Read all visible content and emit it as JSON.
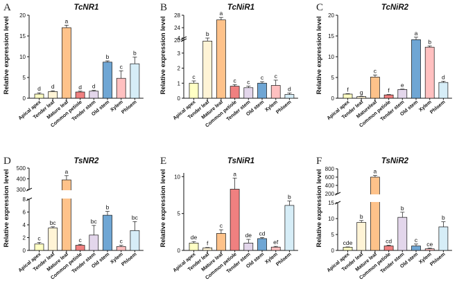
{
  "chart_data": [
    {
      "type": "bar",
      "panel": "A",
      "title": "TcNR1",
      "ylabel": "Relative expression level",
      "categories": [
        "Apical apex",
        "Tender leaf",
        "Mature leaf",
        "Common petiole",
        "Tender stem",
        "Old stem",
        "Xylem",
        "Phloem"
      ],
      "values": [
        1.0,
        1.6,
        17.0,
        1.5,
        1.7,
        8.7,
        4.8,
        8.3
      ],
      "errors": [
        0.3,
        0.2,
        0.6,
        0.2,
        0.2,
        0.3,
        1.8,
        1.6
      ],
      "letters": [
        "d",
        "d",
        "a",
        "d",
        "d",
        "b",
        "c",
        "b"
      ],
      "colors": [
        "#ffffc4",
        "#fff4d6",
        "#fec28a",
        "#f08080",
        "#e3d6eb",
        "#6fa6d4",
        "#ffc0c0",
        "#d6edf7"
      ],
      "yticks": [
        0,
        5,
        10,
        15,
        20
      ],
      "segments": [
        {
          "from": 0,
          "to": 20,
          "ticks": [
            0,
            5,
            10,
            15,
            20
          ]
        }
      ]
    },
    {
      "type": "bar",
      "panel": "B",
      "title": "TcNiR1",
      "ylabel": "Relative expression level",
      "categories": [
        "Apical apex",
        "Tender leaf",
        "Mature leaf",
        "Common petiole",
        "Tender stem",
        "Old stem",
        "Xylem",
        "Phloem"
      ],
      "values": [
        1.0,
        3.8,
        26.5,
        0.8,
        0.7,
        1.0,
        0.85,
        0.25
      ],
      "errors": [
        0.15,
        0.5,
        0.8,
        0.1,
        0.1,
        0.1,
        0.35,
        0.1
      ],
      "letters": [
        "c",
        "b",
        "a",
        "c",
        "c",
        "c",
        "c",
        "d"
      ],
      "colors": [
        "#ffffc4",
        "#fff4d6",
        "#fec28a",
        "#f08080",
        "#e3d6eb",
        "#6fa6d4",
        "#ffc0c0",
        "#d6edf7"
      ],
      "yticks": [
        0,
        1,
        2,
        3,
        4,
        20,
        24,
        28
      ],
      "segments": [
        {
          "from": 0,
          "to": 4,
          "ticks": [
            0,
            1,
            2,
            3,
            4
          ]
        },
        {
          "from": 20,
          "to": 28,
          "ticks": [
            20,
            24,
            28
          ]
        }
      ]
    },
    {
      "type": "bar",
      "panel": "C",
      "title": "TcNiR2",
      "ylabel": "Relative expression level",
      "categories": [
        "Apical apex",
        "Tender leaf",
        "Matureleaf",
        "Common petiole",
        "Tender stem",
        "Old stem",
        "Xylem",
        "Phloem"
      ],
      "values": [
        1.0,
        0.4,
        5.1,
        0.8,
        2.1,
        14.1,
        12.3,
        3.8
      ],
      "errors": [
        0.1,
        0.05,
        0.5,
        0.1,
        0.1,
        0.6,
        0.3,
        0.3
      ],
      "letters": [
        "f",
        "g",
        "c",
        "f",
        "e",
        "a",
        "b",
        "d"
      ],
      "colors": [
        "#ffffc4",
        "#fff4d6",
        "#fec28a",
        "#f08080",
        "#e3d6eb",
        "#6fa6d4",
        "#ffc0c0",
        "#d6edf7"
      ],
      "yticks": [
        0,
        5,
        10,
        15,
        20
      ],
      "segments": [
        {
          "from": 0,
          "to": 20,
          "ticks": [
            0,
            5,
            10,
            15,
            20
          ]
        }
      ]
    },
    {
      "type": "bar",
      "panel": "D",
      "title": "TsNR2",
      "ylabel": "Relative expression level",
      "categories": [
        "Apical apex",
        "Tender leaf",
        "Mature leaf",
        "Common petiole",
        "Tender stem",
        "Old stem",
        "Xylem",
        "Phloem"
      ],
      "values": [
        1.0,
        3.5,
        390,
        0.8,
        2.4,
        5.5,
        0.6,
        3.1
      ],
      "errors": [
        0.25,
        0.2,
        40,
        0.15,
        1.5,
        0.6,
        0.2,
        1.4
      ],
      "letters": [
        "c",
        "bc",
        "a",
        "c",
        "bc",
        "b",
        "c",
        "bc"
      ],
      "colors": [
        "#ffffc4",
        "#fff4d6",
        "#fec28a",
        "#f08080",
        "#e3d6eb",
        "#6fa6d4",
        "#ffc0c0",
        "#d6edf7"
      ],
      "yticks": [
        0,
        2,
        4,
        6,
        8,
        300,
        400,
        500
      ],
      "segments": [
        {
          "from": 0,
          "to": 8,
          "ticks": [
            0,
            2,
            4,
            6,
            8
          ]
        },
        {
          "from": 300,
          "to": 500,
          "ticks": [
            300,
            400,
            500
          ]
        }
      ]
    },
    {
      "type": "bar",
      "panel": "E",
      "title": "TsNiR1",
      "ylabel": "Relative expression level",
      "categories": [
        "Apical apex",
        "Tender leaf",
        "Mature leaf",
        "Common petiole",
        "Tender stem",
        "Old stem",
        "Xylem",
        "Phloem"
      ],
      "values": [
        1.0,
        0.35,
        2.3,
        8.3,
        1.0,
        1.6,
        0.45,
        6.1
      ],
      "errors": [
        0.2,
        0.05,
        0.5,
        1.5,
        0.5,
        0.15,
        0.1,
        0.6
      ],
      "letters": [
        "de",
        "f",
        "c",
        "a",
        "de",
        "cd",
        "ef",
        "b"
      ],
      "colors": [
        "#ffffc4",
        "#fff4d6",
        "#fec28a",
        "#f08080",
        "#e3d6eb",
        "#6fa6d4",
        "#ffc0c0",
        "#d6edf7"
      ],
      "yticks": [
        0,
        5,
        10
      ],
      "segments": [
        {
          "from": 0,
          "to": 10.5,
          "ticks": [
            0,
            5,
            10
          ]
        }
      ]
    },
    {
      "type": "bar",
      "panel": "F",
      "title": "TsNiR2",
      "ylabel": "Relative expression level",
      "categories": [
        "Apical apex",
        "Tender leaf",
        "Mature leaf",
        "Common petiole",
        "Tender stem",
        "Old stem",
        "Xylem",
        "Phloem"
      ],
      "values": [
        1.0,
        8.8,
        600,
        1.4,
        10.4,
        1.4,
        0.5,
        7.4
      ],
      "errors": [
        0.1,
        0.6,
        40,
        0.2,
        1.6,
        0.6,
        0.2,
        1.6
      ],
      "letters": [
        "cde",
        "b",
        "a",
        "cd",
        "b",
        "c",
        "ce",
        "b"
      ],
      "colors": [
        "#ffffc4",
        "#fff4d6",
        "#fec28a",
        "#f08080",
        "#e3d6eb",
        "#6fa6d4",
        "#ffc0c0",
        "#d6edf7"
      ],
      "yticks": [
        0,
        5,
        10,
        15,
        200,
        400,
        600,
        800
      ],
      "segments": [
        {
          "from": 0,
          "to": 15,
          "ticks": [
            0,
            5,
            10,
            15
          ]
        },
        {
          "from": 200,
          "to": 800,
          "ticks": [
            200,
            400,
            600,
            800
          ]
        }
      ]
    }
  ]
}
